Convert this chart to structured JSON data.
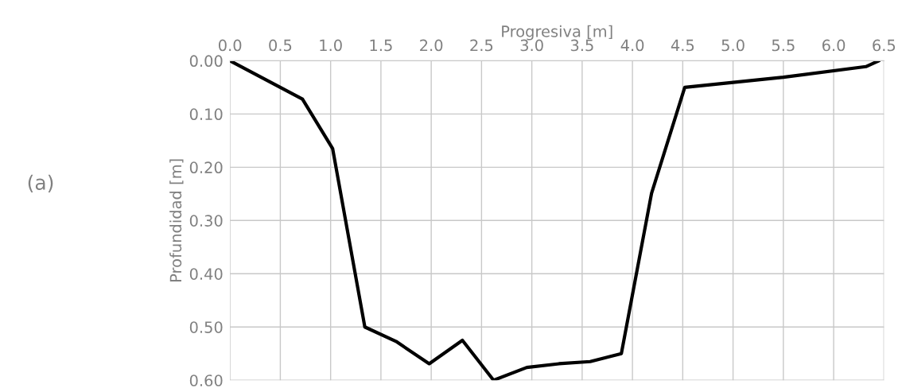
{
  "chart_data": {
    "type": "line",
    "xlabel": "Progresiva [m]",
    "ylabel": "Profundidad [m]",
    "annotations": [
      "(a)"
    ],
    "x": [
      0.0,
      0.72,
      1.02,
      1.34,
      1.65,
      1.98,
      2.31,
      2.62,
      2.95,
      3.27,
      3.58,
      3.89,
      4.19,
      4.52,
      5.5,
      6.32,
      6.45
    ],
    "series": [
      {
        "color": "#000000",
        "values": [
          0.0,
          0.072,
          0.165,
          0.5,
          0.527,
          0.569,
          0.525,
          0.6,
          0.576,
          0.569,
          0.565,
          0.55,
          0.249,
          0.05,
          0.031,
          0.011,
          0.0
        ]
      }
    ],
    "xlim": [
      0,
      6.5
    ],
    "xticks": [
      {
        "value": 0,
        "label": "0.0"
      },
      {
        "value": 0.5,
        "label": "0.5"
      },
      {
        "value": 1,
        "label": "1.0"
      },
      {
        "value": 1.5,
        "label": "1.5"
      },
      {
        "value": 2,
        "label": "2.0"
      },
      {
        "value": 2.5,
        "label": "2.5"
      },
      {
        "value": 3,
        "label": "3.0"
      },
      {
        "value": 3.5,
        "label": "3.5"
      },
      {
        "value": 4,
        "label": "4.0"
      },
      {
        "value": 4.5,
        "label": "4.5"
      },
      {
        "value": 5,
        "label": "5.0"
      },
      {
        "value": 5.5,
        "label": "5.5"
      },
      {
        "value": 6,
        "label": "6.0"
      },
      {
        "value": 6.5,
        "label": "6.5"
      }
    ],
    "ylim": [
      0.6,
      0
    ],
    "yticks": [
      {
        "value": 0,
        "label": "0.00"
      },
      {
        "value": 0.1,
        "label": "0.10"
      },
      {
        "value": 0.2,
        "label": "0.20"
      },
      {
        "value": 0.3,
        "label": "0.30"
      },
      {
        "value": 0.4,
        "label": "0.40"
      },
      {
        "value": 0.5,
        "label": "0.50"
      },
      {
        "value": 0.6,
        "label": "0.60"
      }
    ],
    "grid": true,
    "marker": "none",
    "line_style": "solid"
  }
}
